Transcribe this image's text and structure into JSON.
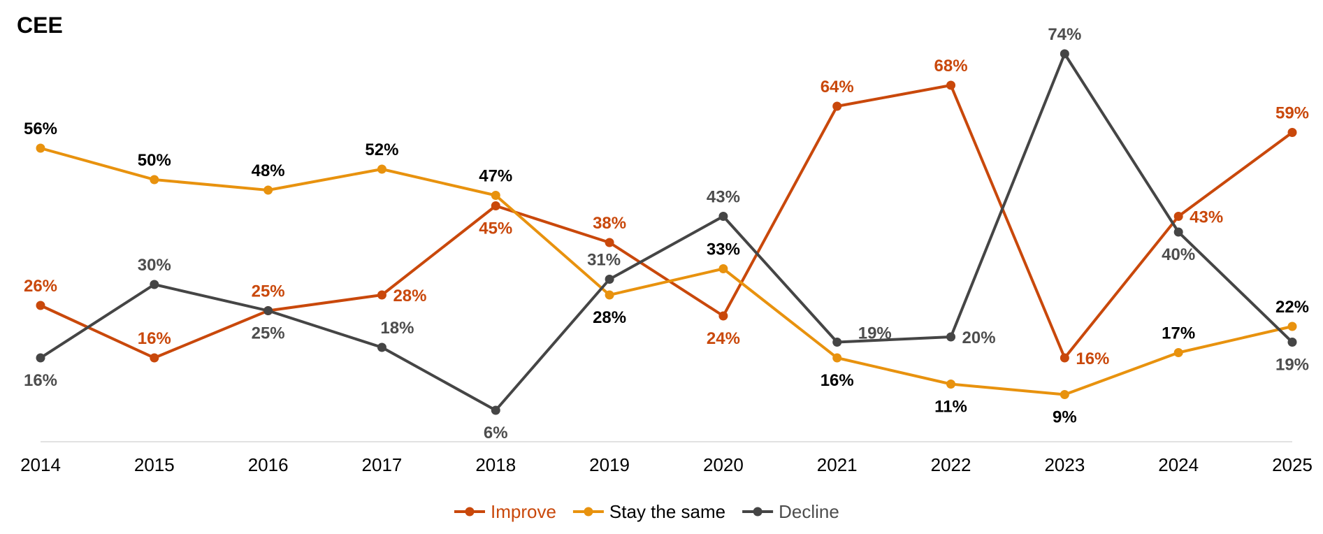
{
  "chart_data": {
    "type": "line",
    "title": "CEE",
    "xlabel": "",
    "ylabel": "",
    "categories": [
      "2014",
      "2015",
      "2016",
      "2017",
      "2018",
      "2019",
      "2020",
      "2021",
      "2022",
      "2023",
      "2024",
      "2025"
    ],
    "ylim": [
      0,
      74
    ],
    "grid": false,
    "legend_placement": "bottom",
    "value_suffix": "%",
    "series": [
      {
        "name": "Improve",
        "color": "#C9480B",
        "label_color": "#C9480B",
        "values": [
          26,
          16,
          25,
          28,
          45,
          38,
          24,
          64,
          68,
          16,
          43,
          59
        ]
      },
      {
        "name": "Stay the same",
        "color": "#E8920E",
        "label_color": "#000000",
        "values": [
          56,
          50,
          48,
          52,
          47,
          28,
          33,
          16,
          11,
          9,
          17,
          22
        ]
      },
      {
        "name": "Decline",
        "color": "#454545",
        "label_color": "#4D4D4D",
        "values": [
          16,
          30,
          25,
          18,
          6,
          31,
          43,
          19,
          20,
          74,
          40,
          19
        ]
      }
    ]
  }
}
